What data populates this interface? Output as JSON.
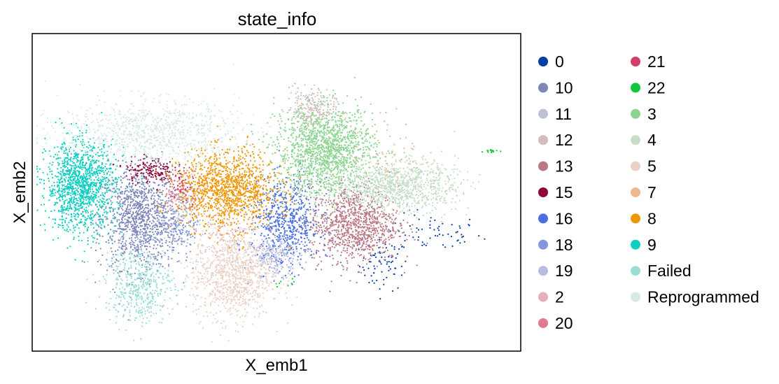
{
  "chart_data": {
    "type": "scatter",
    "title": "state_info",
    "xlabel": "X_emb1",
    "ylabel": "X_emb2",
    "xlim": [
      0,
      100
    ],
    "ylim": [
      0,
      100
    ],
    "grid": false,
    "ticks": false,
    "legend_position": "right, outside plot, two columns",
    "series": [
      {
        "name": "0",
        "color": "#023fa5",
        "clusters": [
          {
            "cx": 72,
            "cy": 27,
            "sx": 2.5,
            "sy": 4,
            "n": 70
          },
          {
            "cx": 82,
            "cy": 37,
            "sx": 5,
            "sy": 3,
            "n": 60
          }
        ]
      },
      {
        "name": "10",
        "color": "#7d87b9",
        "clusters": [
          {
            "cx": 22,
            "cy": 42,
            "sx": 4,
            "sy": 8,
            "n": 1100
          }
        ]
      },
      {
        "name": "11",
        "color": "#bec1d4",
        "clusters": [
          {
            "cx": 31,
            "cy": 44,
            "sx": 2,
            "sy": 4,
            "n": 90
          }
        ]
      },
      {
        "name": "12",
        "color": "#d6bcc0",
        "clusters": [
          {
            "cx": 57,
            "cy": 76,
            "sx": 2.5,
            "sy": 3,
            "n": 220
          }
        ]
      },
      {
        "name": "13",
        "color": "#bb7784",
        "clusters": [
          {
            "cx": 66,
            "cy": 40,
            "sx": 4.5,
            "sy": 6,
            "n": 1000
          }
        ]
      },
      {
        "name": "15",
        "color": "#8e063b",
        "clusters": [
          {
            "cx": 24,
            "cy": 57,
            "sx": 2.5,
            "sy": 2,
            "n": 160
          }
        ]
      },
      {
        "name": "16",
        "color": "#4a6fe3",
        "clusters": [
          {
            "cx": 52,
            "cy": 40,
            "sx": 3.5,
            "sy": 7,
            "n": 650
          }
        ]
      },
      {
        "name": "18",
        "color": "#8595e1",
        "clusters": [
          {
            "cx": 29,
            "cy": 38,
            "sx": 2.5,
            "sy": 4,
            "n": 150
          }
        ]
      },
      {
        "name": "19",
        "color": "#b5bbe3",
        "clusters": [
          {
            "cx": 50,
            "cy": 30,
            "sx": 2.5,
            "sy": 3,
            "n": 220
          }
        ]
      },
      {
        "name": "2",
        "color": "#e6afb9",
        "clusters": [
          {
            "cx": 40,
            "cy": 38,
            "sx": 3,
            "sy": 4,
            "n": 100
          }
        ]
      },
      {
        "name": "20",
        "color": "#e07b91",
        "clusters": [
          {
            "cx": 30,
            "cy": 50,
            "sx": 1.5,
            "sy": 3,
            "n": 60
          }
        ]
      },
      {
        "name": "21",
        "color": "#d33f6a",
        "clusters": [
          {
            "cx": 31,
            "cy": 52,
            "sx": 1.5,
            "sy": 3,
            "n": 60
          }
        ]
      },
      {
        "name": "22",
        "color": "#11c638",
        "clusters": [
          {
            "cx": 94,
            "cy": 63,
            "sx": 0.8,
            "sy": 0.3,
            "n": 14
          },
          {
            "cx": 52,
            "cy": 22,
            "sx": 1.5,
            "sy": 1,
            "n": 8
          }
        ]
      },
      {
        "name": "3",
        "color": "#8dd593",
        "clusters": [
          {
            "cx": 60,
            "cy": 63,
            "sx": 5,
            "sy": 7,
            "n": 1600
          }
        ]
      },
      {
        "name": "4",
        "color": "#c6dec7",
        "clusters": [
          {
            "cx": 75,
            "cy": 52,
            "sx": 6,
            "sy": 4,
            "n": 1000
          }
        ]
      },
      {
        "name": "5",
        "color": "#ead3c6",
        "clusters": [
          {
            "cx": 41,
            "cy": 24,
            "sx": 4,
            "sy": 7,
            "n": 1000
          }
        ]
      },
      {
        "name": "7",
        "color": "#f0b98d",
        "clusters": [
          {
            "cx": 72,
            "cy": 62,
            "sx": 4,
            "sy": 6,
            "n": 70
          }
        ]
      },
      {
        "name": "8",
        "color": "#ef9708",
        "clusters": [
          {
            "cx": 40,
            "cy": 51,
            "sx": 5,
            "sy": 6,
            "n": 1300
          }
        ]
      },
      {
        "name": "9",
        "color": "#0fcfc0",
        "clusters": [
          {
            "cx": 10,
            "cy": 52,
            "sx": 3.5,
            "sy": 7,
            "n": 1300
          }
        ]
      },
      {
        "name": "Failed",
        "color": "#9cded6",
        "clusters": [
          {
            "cx": 22,
            "cy": 21,
            "sx": 3.5,
            "sy": 6,
            "n": 500
          }
        ]
      },
      {
        "name": "Reprogrammed",
        "color": "#d5eae7",
        "clusters": [
          {
            "cx": 24,
            "cy": 69,
            "sx": 9,
            "sy": 5,
            "n": 900
          }
        ]
      }
    ]
  }
}
